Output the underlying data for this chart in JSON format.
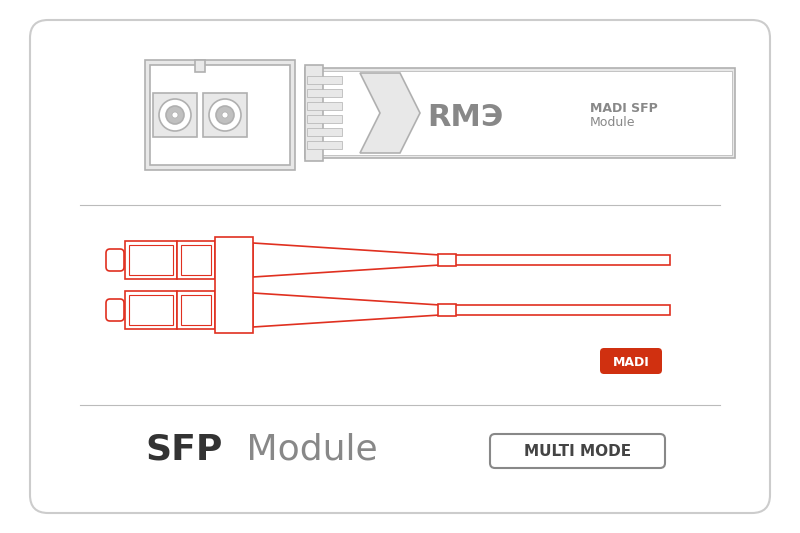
{
  "bg_color": "#ffffff",
  "border_color": "#cccccc",
  "gray_line_color": "#bbbbbb",
  "sfp_color": "#b0b0b0",
  "sfp_fill": "#e8e8e8",
  "red_color": "#e03020",
  "red_fill": "#e03020",
  "madi_badge_color": "#d03010",
  "title_sfp": "SFP",
  "title_module": "Module",
  "title_multimode": "MULTI MODE",
  "title_madi": "MADI",
  "label_madi_sfp": "MADI SFP Module"
}
